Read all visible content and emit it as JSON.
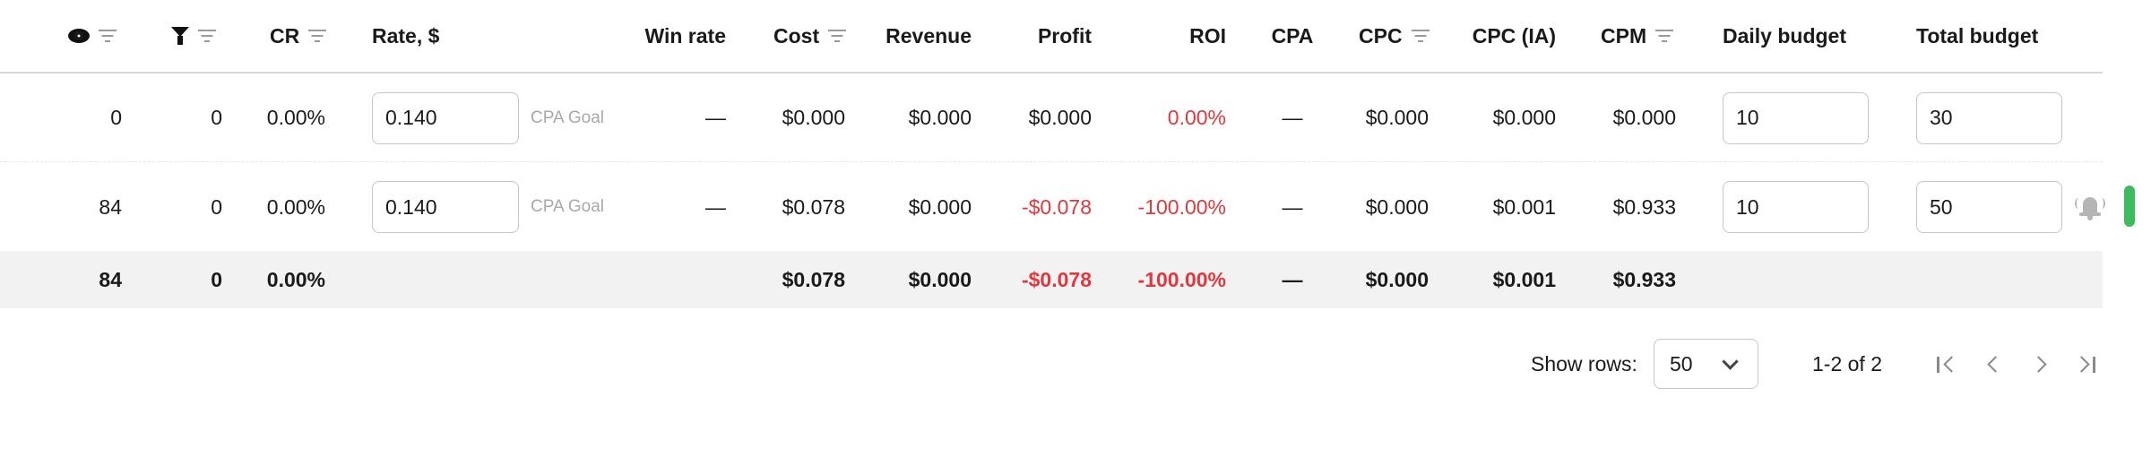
{
  "header": {
    "impressions_icon": "eye-icon",
    "conversions_icon": "funnel-icon",
    "filter_icon": "filter-lines-icon",
    "cr": "CR",
    "rate": "Rate, $",
    "win_rate": "Win rate",
    "cost": "Cost",
    "revenue": "Revenue",
    "profit": "Profit",
    "roi": "ROI",
    "cpa": "CPA",
    "cpc": "CPC",
    "cpc_ia": "CPC (IA)",
    "cpm": "CPM",
    "daily_budget": "Daily budget",
    "total_budget": "Total budget"
  },
  "rows": [
    {
      "impressions": "0",
      "conversions": "0",
      "cr": "0.00%",
      "rate": "0.140",
      "rate_hint": "CPA Goal",
      "win_rate": "—",
      "cost": "$0.000",
      "revenue": "$0.000",
      "profit": "$0.000",
      "roi": "0.00%",
      "cpa": "—",
      "cpc": "$0.000",
      "cpc_ia": "$0.000",
      "cpm": "$0.000",
      "daily_budget": "10",
      "total_budget": "30"
    },
    {
      "impressions": "84",
      "conversions": "0",
      "cr": "0.00%",
      "rate": "0.140",
      "rate_hint": "CPA Goal",
      "win_rate": "—",
      "cost": "$0.078",
      "revenue": "$0.000",
      "profit": "-$0.078",
      "roi": "-100.00%",
      "cpa": "—",
      "cpc": "$0.000",
      "cpc_ia": "$0.001",
      "cpm": "$0.933",
      "daily_budget": "10",
      "total_budget": "50",
      "alert_icon": "bell-icon"
    }
  ],
  "totals": {
    "impressions": "84",
    "conversions": "0",
    "cr": "0.00%",
    "cost": "$0.078",
    "revenue": "$0.000",
    "profit": "-$0.078",
    "roi": "-100.00%",
    "cpa": "—",
    "cpc": "$0.000",
    "cpc_ia": "$0.001",
    "cpm": "$0.933"
  },
  "pagination": {
    "show_rows_label": "Show rows:",
    "rows_per_page": "50",
    "range": "1-2 of 2",
    "icons": [
      "first-page-icon",
      "prev-page-icon",
      "next-page-icon",
      "last-page-icon"
    ]
  },
  "colors": {
    "negative": "#e0383e",
    "scrollbar": "#3dbb5e",
    "total_row_bg": "#f2f2f2"
  }
}
